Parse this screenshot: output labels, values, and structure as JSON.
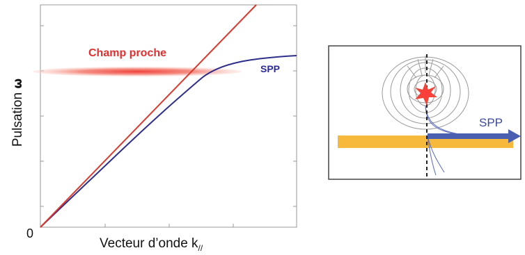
{
  "graph": {
    "y_axis_label": "Pulsation",
    "y_axis_symbol": "ω",
    "origin_label": "0",
    "x_axis_label": "Vecteur d’onde k",
    "x_axis_subscript": "//",
    "near_field_label": "Champ proche",
    "spp_curve_label": "SPP"
  },
  "inset": {
    "spp_arrow_label": "SPP"
  },
  "colors": {
    "light_line": "#d93a2e",
    "spp_curve": "#2d2d8c",
    "near_field": "#f05a4a",
    "metal_strip": "#f6b93b",
    "spp_arrow": "#4a5fb0"
  }
}
